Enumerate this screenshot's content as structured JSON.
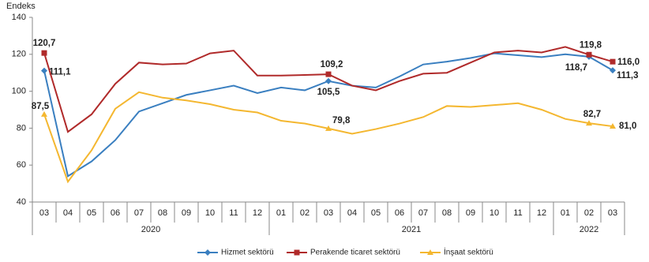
{
  "chart_data": {
    "type": "line",
    "y_label": "Endeks",
    "categories": [
      "03",
      "04",
      "05",
      "06",
      "07",
      "08",
      "09",
      "10",
      "11",
      "12",
      "01",
      "02",
      "03",
      "04",
      "05",
      "06",
      "07",
      "08",
      "09",
      "10",
      "11",
      "12",
      "01",
      "02",
      "03"
    ],
    "x_groups": [
      "2020",
      "2021",
      "2022"
    ],
    "x_group_sizes": [
      10,
      12,
      3
    ],
    "ylim": [
      40,
      140
    ],
    "yticks": [
      40,
      60,
      80,
      100,
      120,
      140
    ],
    "grid": false,
    "legend": "bottom",
    "series": [
      {
        "name": "Hizmet sektörü",
        "color": "#3a7fc0",
        "marker": "diamond",
        "values": [
          111.1,
          54,
          62,
          73.5,
          89,
          93.5,
          98,
          100.5,
          103,
          99,
          102,
          100.5,
          105.5,
          103,
          102,
          108,
          114.5,
          116,
          118,
          120.5,
          119.5,
          118.5,
          120,
          118.7,
          111.3
        ],
        "value_labels": [
          "111,1",
          null,
          null,
          null,
          null,
          null,
          null,
          null,
          null,
          null,
          null,
          null,
          "105,5",
          null,
          null,
          null,
          null,
          null,
          null,
          null,
          null,
          null,
          null,
          "118,7",
          "111,3"
        ]
      },
      {
        "name": "Perakende ticaret sektörü",
        "color": "#b02a2a",
        "marker": "square",
        "values": [
          120.7,
          78,
          87.5,
          104,
          115.5,
          114.5,
          115,
          120.5,
          122,
          108.5,
          108.5,
          108.8,
          109.2,
          103,
          100.5,
          105.5,
          109.5,
          110,
          115.5,
          121,
          122,
          121,
          124,
          119.8,
          116.0
        ],
        "value_labels": [
          "120,7",
          null,
          null,
          null,
          null,
          null,
          null,
          null,
          null,
          null,
          null,
          null,
          "109,2",
          null,
          null,
          null,
          null,
          null,
          null,
          null,
          null,
          null,
          null,
          "119,8",
          "116,0"
        ]
      },
      {
        "name": "İnşaat sektörü",
        "color": "#f4b730",
        "marker": "triangle",
        "values": [
          87.5,
          51,
          68,
          90.5,
          99.5,
          96.5,
          95,
          93,
          90,
          88.5,
          84,
          82.5,
          79.8,
          77,
          79.5,
          82.5,
          86,
          92,
          91.5,
          92.5,
          93.5,
          90,
          85,
          82.7,
          81.0
        ],
        "value_labels": [
          "87,5",
          null,
          null,
          null,
          null,
          null,
          null,
          null,
          null,
          null,
          null,
          null,
          "79,8",
          null,
          null,
          null,
          null,
          null,
          null,
          null,
          null,
          null,
          null,
          "82,7",
          "81,0"
        ]
      }
    ]
  }
}
